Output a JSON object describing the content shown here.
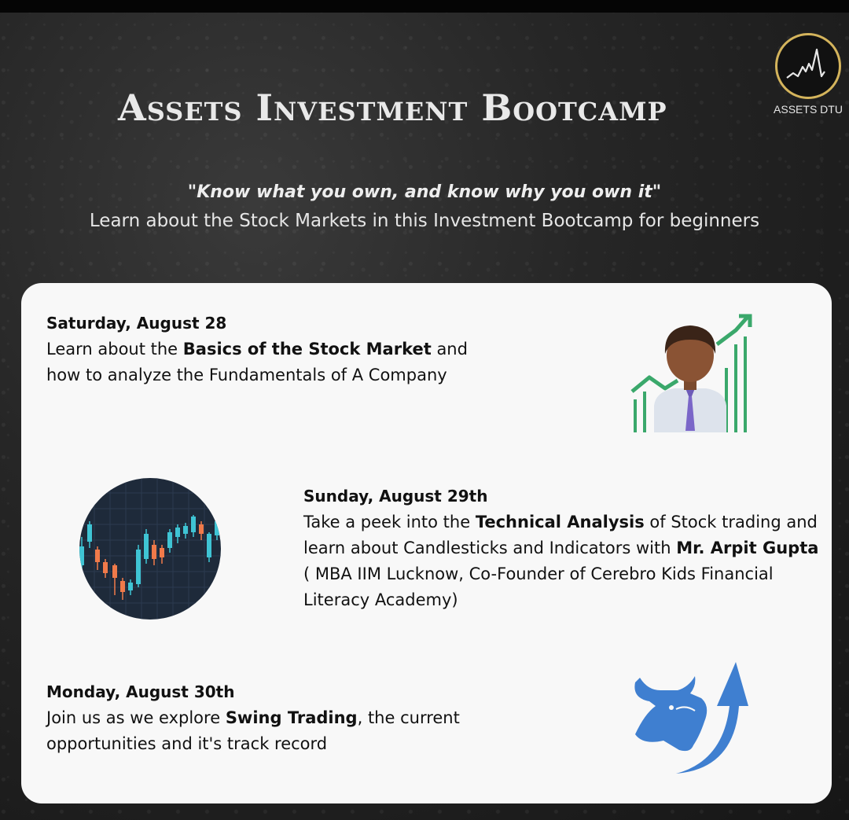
{
  "header": {
    "title": "Assets Investment Bootcamp",
    "logo_label": "ASSETS DTU",
    "quote": "\"Know what you own, and know why you own it\"",
    "tagline": "Learn about the Stock Markets in this Investment  Bootcamp for beginners"
  },
  "sessions": [
    {
      "date": "Saturday, August 28",
      "pre": "Learn about the ",
      "bold": "Basics of the Stock Market",
      "post": " and how to analyze the Fundamentals of A Company",
      "icon": "businessman-growth-chart-icon"
    },
    {
      "date": "Sunday, August 29th",
      "pre": "Take a peek into the ",
      "bold": "Technical Analysis",
      "mid": " of Stock trading and learn about Candlesticks and Indicators with ",
      "bold2": "Mr. Arpit Gupta",
      "post": " ( MBA IIM Lucknow, Co-Founder of Cerebro Kids Financial Literacy Academy)",
      "icon": "candlestick-chart-icon"
    },
    {
      "date": "Monday, August 30th",
      "pre": "Join us as we explore ",
      "bold": "Swing Trading",
      "post": ", the current opportunities and it's track record",
      "icon": "bull-arrow-icon"
    }
  ],
  "colors": {
    "background": "#262626",
    "card": "#f8f8f8",
    "logo_ring": "#d4b45c",
    "green": "#3aa86b",
    "bull_blue": "#3f7fd0",
    "candle_teal": "#3fc4d4",
    "candle_orange": "#f07a4a",
    "chart_bg": "#1e2a3a"
  }
}
